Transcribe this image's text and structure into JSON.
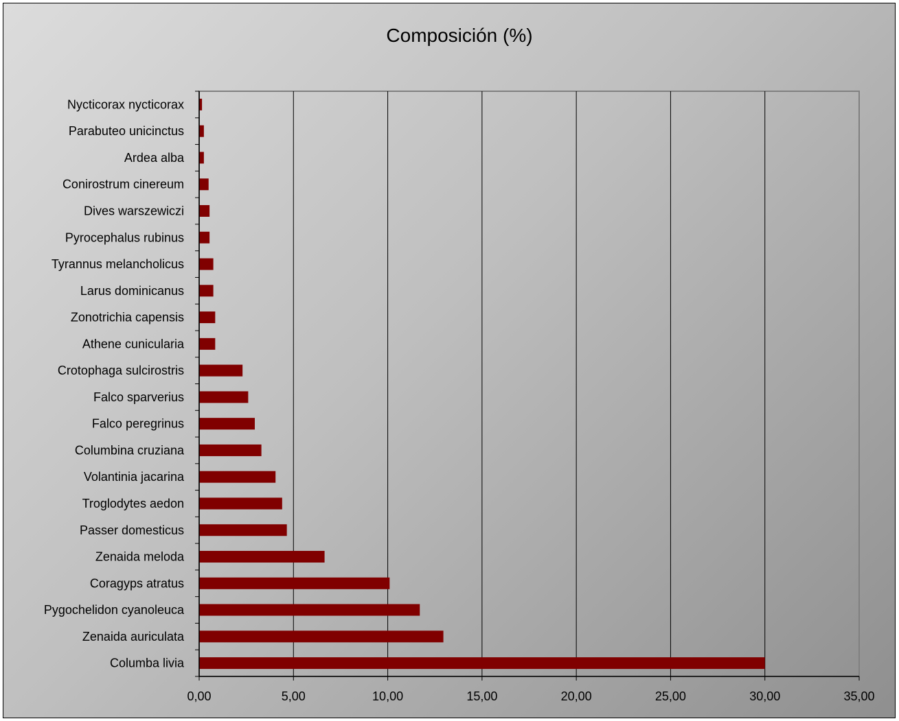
{
  "chart_data": {
    "type": "bar",
    "orientation": "horizontal",
    "title": "Composición (%)",
    "xlabel": "",
    "ylabel": "",
    "xlim": [
      0,
      35
    ],
    "x_ticks": [
      "0,00",
      "5,00",
      "10,00",
      "15,00",
      "20,00",
      "25,00",
      "30,00",
      "35,00"
    ],
    "grid": "vertical major gridlines",
    "legend": "none",
    "bar_color": "#800000",
    "categories": [
      "Columba livia",
      "Zenaida auriculata",
      "Pygochelidon cyanoleuca",
      "Coragyps atratus",
      "Zenaida meloda",
      "Passer domesticus",
      "Troglodytes aedon",
      "Volantinia jacarina",
      "Columbina cruziana",
      "Falco peregrinus",
      "Falco sparverius",
      "Crotophaga sulcirostris",
      "Athene cunicularia",
      "Zonotrichia capensis",
      "Larus dominicanus",
      "Tyrannus melancholicus",
      "Pyrocephalus rubinus",
      "Dives warszewiczi",
      "Conirostrum cinereum",
      "Ardea alba",
      "Parabuteo unicinctus",
      "Nycticorax nycticorax"
    ],
    "values": [
      30.0,
      12.95,
      11.7,
      10.1,
      6.65,
      4.65,
      4.4,
      4.05,
      3.3,
      2.95,
      2.6,
      2.3,
      0.85,
      0.85,
      0.75,
      0.75,
      0.55,
      0.55,
      0.5,
      0.25,
      0.25,
      0.15
    ]
  }
}
